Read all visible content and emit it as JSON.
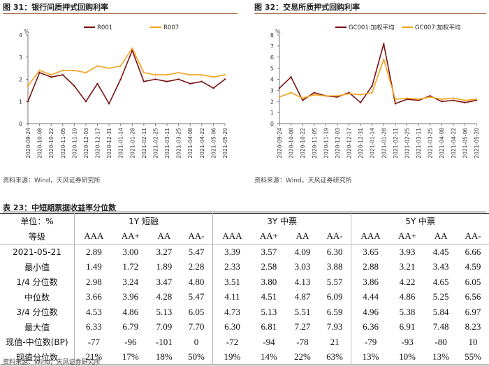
{
  "figures": [
    {
      "heading": "图 31：银行间质押式回购利率",
      "source": "资料来源：Wind，天风证券研究所",
      "colors": {
        "r001": "#7b1113",
        "r007": "#f7a21b"
      },
      "chart_data": {
        "type": "line",
        "title": "银行间质押式回购利率",
        "ylabel": "%",
        "ylim": [
          0,
          4
        ],
        "yticks": [
          0,
          1,
          2,
          3,
          4
        ],
        "legend_position": "top-center",
        "x": [
          "2020-09-24",
          "2020-10-08",
          "2020-10-22",
          "2020-11-05",
          "2020-11-19",
          "2020-12-03",
          "2020-12-17",
          "2020-12-31",
          "2021-01-14",
          "2021-01-28",
          "2021-02-11",
          "2021-02-25",
          "2021-03-11",
          "2021-03-25",
          "2021-04-08",
          "2021-04-22",
          "2021-05-06",
          "2021-05-20"
        ],
        "xticklabels": [
          "2020-09-24",
          "2020-10-08",
          "2020-10-22",
          "2020-11-05",
          "2020-11-19",
          "2020-12-03",
          "2020-12-17",
          "2020-12-31",
          "2021-01-14",
          "2021-01-28",
          "2021-02-11",
          "2021-02-25",
          "2021-03-11",
          "2021-03-25",
          "2021-04-08",
          "2021-04-22",
          "2021-05-06",
          "2021-05-20"
        ],
        "series": [
          {
            "name": "R001",
            "values": [
              1.0,
              2.3,
              2.1,
              2.2,
              1.7,
              1.0,
              1.8,
              0.9,
              2.0,
              3.3,
              1.9,
              2.0,
              1.9,
              2.0,
              1.8,
              1.9,
              1.6,
              2.0
            ]
          },
          {
            "name": "R007",
            "values": [
              1.7,
              2.4,
              2.2,
              2.4,
              2.4,
              2.3,
              2.6,
              2.5,
              2.6,
              3.4,
              2.3,
              2.2,
              2.2,
              2.3,
              2.2,
              2.2,
              2.1,
              2.2
            ]
          }
        ]
      }
    },
    {
      "heading": "图 32：交易所质押式回购利率",
      "source": "资料来源：Wind，天风证券研究所",
      "colors": {
        "gc001": "#7b1113",
        "gc007": "#f7a21b"
      },
      "chart_data": {
        "type": "line",
        "title": "交易所质押式回购利率",
        "ylabel": "%",
        "ylim": [
          0,
          8
        ],
        "yticks": [
          0,
          1,
          2,
          3,
          4,
          5,
          6,
          7,
          8
        ],
        "legend_position": "top-center",
        "x": [
          "2020-09-24",
          "2020-10-08",
          "2020-10-22",
          "2020-11-05",
          "2020-11-19",
          "2020-12-03",
          "2020-12-17",
          "2020-12-31",
          "2021-01-14",
          "2021-01-28",
          "2021-02-11",
          "2021-02-25",
          "2021-03-11",
          "2021-03-25",
          "2021-04-08",
          "2021-04-22",
          "2021-05-06",
          "2021-05-20"
        ],
        "xticklabels": [
          "2020-09-24",
          "2020-10-08",
          "2020-10-22",
          "2020-11-05",
          "2020-11-19",
          "2020-12-03",
          "2020-12-17",
          "2020-12-31",
          "2021-01-14",
          "2021-01-28",
          "2021-02-11",
          "2021-02-25",
          "2021-03-11",
          "2021-03-25",
          "2021-04-08",
          "2021-04-22",
          "2021-05-06",
          "2021-05-20"
        ],
        "series": [
          {
            "name": "GC001:加权平均",
            "values": [
              3.2,
              4.2,
              2.1,
              2.8,
              2.5,
              2.4,
              2.8,
              1.9,
              3.4,
              7.2,
              1.8,
              2.2,
              2.1,
              2.5,
              2.0,
              2.1,
              1.9,
              2.1
            ]
          },
          {
            "name": "GC007:加权平均",
            "values": [
              2.4,
              2.8,
              2.3,
              2.6,
              2.5,
              2.5,
              2.7,
              2.6,
              2.8,
              5.8,
              2.2,
              2.3,
              2.2,
              2.4,
              2.2,
              2.3,
              2.1,
              2.2
            ]
          }
        ]
      }
    }
  ],
  "table": {
    "heading": "表 23：中短期票据收益率分位数",
    "corner_top": "单位：%",
    "corner_bottom": "等级",
    "groups": [
      "1Y 短融",
      "3Y 中票",
      "5Y 中票"
    ],
    "grades": [
      "AAA",
      "AA+",
      "AA",
      "AA-",
      "AAA",
      "AA+",
      "AA",
      "AA-",
      "AAA",
      "AA+",
      "AA",
      "AA-"
    ],
    "rows": [
      {
        "label": "2021-05-21",
        "cells": [
          "2.89",
          "3.00",
          "3.27",
          "5.47",
          "3.39",
          "3.57",
          "4.09",
          "6.30",
          "3.65",
          "3.93",
          "4.45",
          "6.66"
        ]
      },
      {
        "label": "最小值",
        "cells": [
          "1.49",
          "1.72",
          "1.89",
          "2.28",
          "2.33",
          "2.58",
          "3.03",
          "3.88",
          "2.88",
          "3.21",
          "3.43",
          "4.59"
        ]
      },
      {
        "label": "1/4 分位数",
        "cells": [
          "2.98",
          "3.24",
          "3.47",
          "4.80",
          "3.51",
          "3.80",
          "4.13",
          "5.57",
          "3.86",
          "4.22",
          "4.65",
          "6.05"
        ]
      },
      {
        "label": "中位数",
        "cells": [
          "3.66",
          "3.96",
          "4.28",
          "5.47",
          "4.11",
          "4.51",
          "4.87",
          "6.09",
          "4.44",
          "4.86",
          "5.25",
          "6.56"
        ]
      },
      {
        "label": "3/4 分位数",
        "cells": [
          "4.53",
          "4.86",
          "5.13",
          "6.05",
          "4.73",
          "5.13",
          "5.51",
          "6.59",
          "4.96",
          "5.38",
          "5.84",
          "6.97"
        ]
      },
      {
        "label": "最大值",
        "cells": [
          "6.33",
          "6.79",
          "7.09",
          "7.70",
          "6.30",
          "6.81",
          "7.27",
          "7.93",
          "6.36",
          "6.91",
          "7.48",
          "8.23"
        ]
      },
      {
        "label": "现值-中位数(BP)",
        "cells": [
          "-77",
          "-96",
          "-101",
          "0",
          "-72",
          "-94",
          "-78",
          "21",
          "-79",
          "-93",
          "-80",
          "10"
        ]
      },
      {
        "label": "现值分位数",
        "cells": [
          "21%",
          "17%",
          "18%",
          "50%",
          "19%",
          "14%",
          "22%",
          "63%",
          "13%",
          "10%",
          "13%",
          "55%"
        ]
      }
    ],
    "source": "资料来源：Wind，天风证券研究所"
  }
}
